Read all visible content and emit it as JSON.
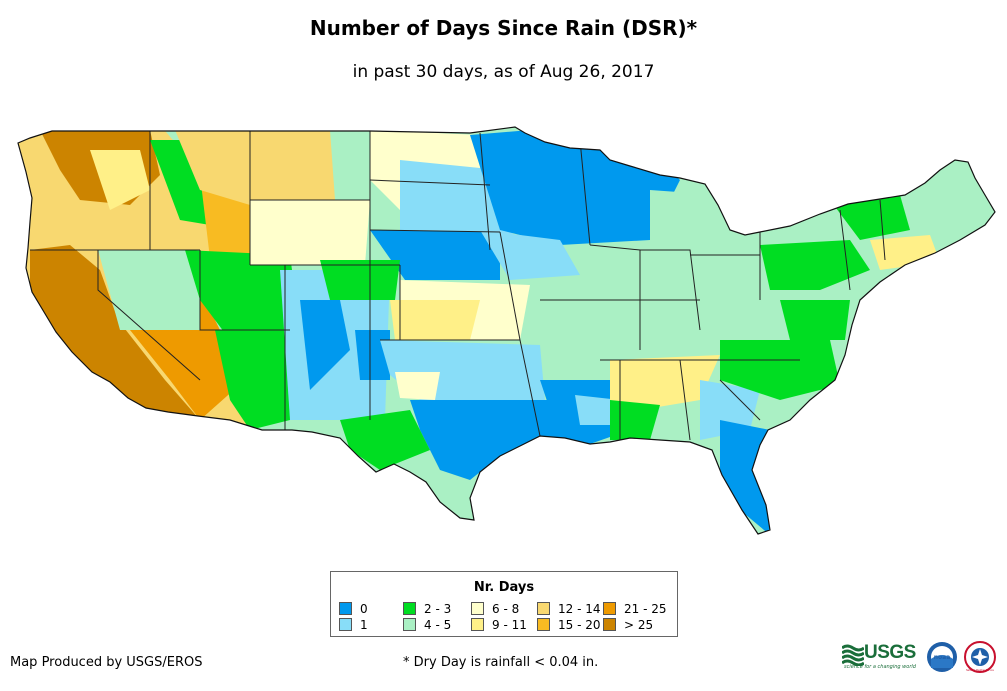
{
  "title": "Number of Days Since Rain (DSR)*",
  "subtitle": "in past 30 days, as of Aug 26, 2017",
  "legend": {
    "title": "Nr. Days",
    "items": [
      {
        "label": "0",
        "color": "#0099ee"
      },
      {
        "label": "1",
        "color": "#88ddf8"
      },
      {
        "label": "2 - 3",
        "color": "#00dd22"
      },
      {
        "label": "4 - 5",
        "color": "#aaf0c4"
      },
      {
        "label": "6 - 8",
        "color": "#ffffcc"
      },
      {
        "label": "9 - 11",
        "color": "#fff088"
      },
      {
        "label": "12 - 14",
        "color": "#f8d870"
      },
      {
        "label": "15 - 20",
        "color": "#f8bb22"
      },
      {
        "label": "21 - 25",
        "color": "#ee9a00"
      },
      {
        "label": "> 25",
        "color": "#cc8400"
      }
    ]
  },
  "credit": "Map Produced by USGS/EROS",
  "footnote": "* Dry Day is rainfall < 0.04 in.",
  "logos": {
    "usgs": "USGS",
    "usgs_tagline": "science for a changing world",
    "noaa": "noaa",
    "nws": "National Weather Service"
  }
}
